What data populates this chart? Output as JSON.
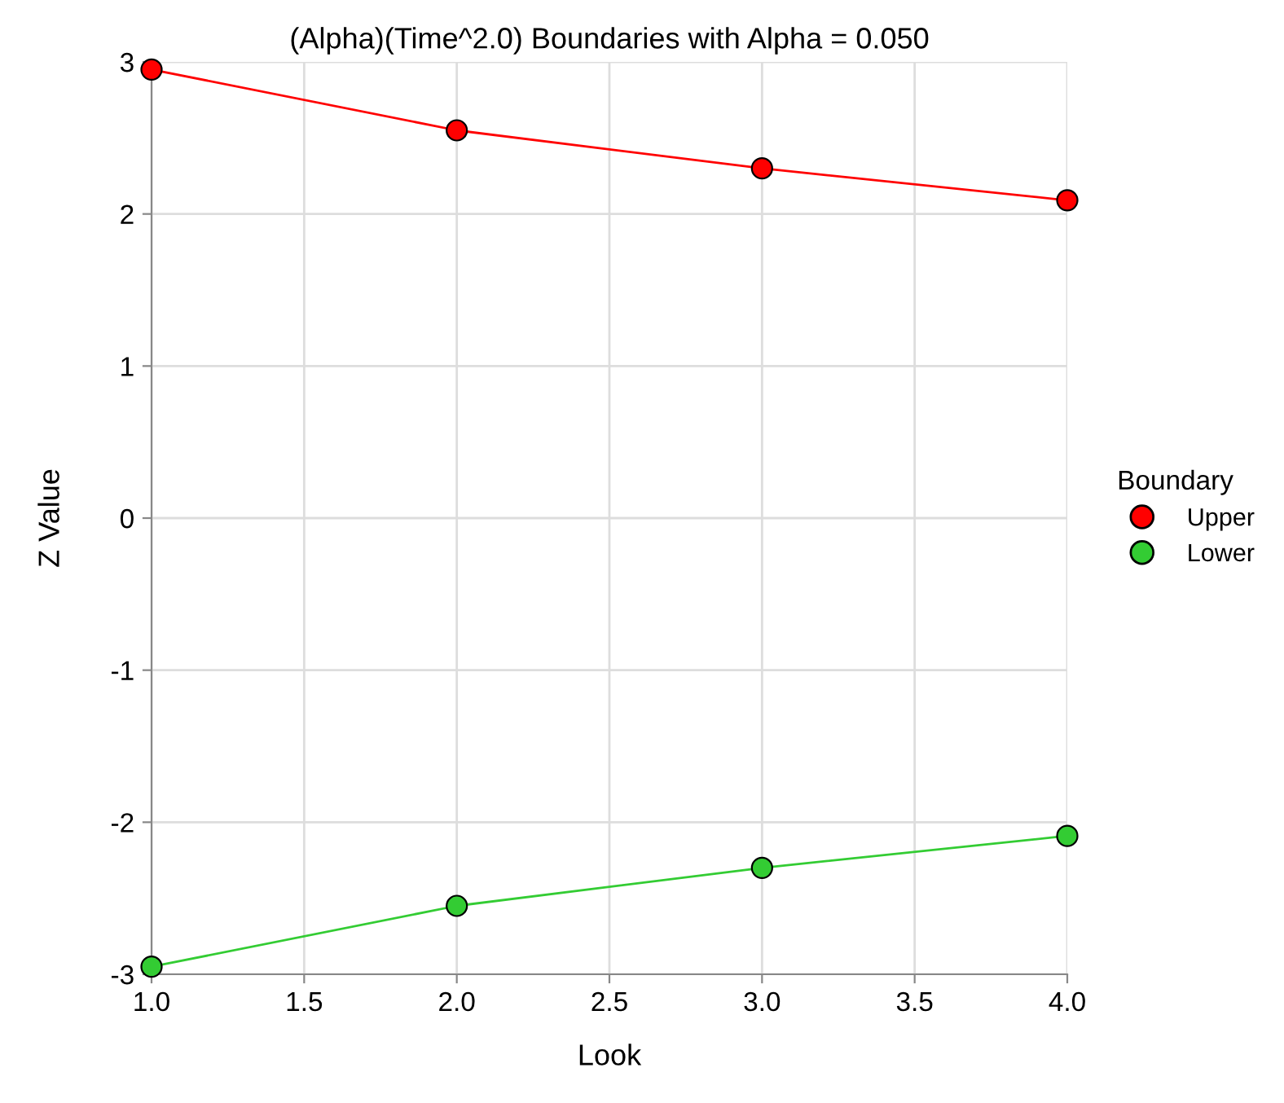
{
  "chart_data": {
    "type": "line",
    "title": "(Alpha)(Time^2.0) Boundaries with Alpha = 0.050",
    "xlabel": "Look",
    "ylabel": "Z Value",
    "legend_title": "Boundary",
    "x": [
      1,
      2,
      3,
      4
    ],
    "series": [
      {
        "name": "Upper",
        "color": "#ff0000",
        "values": [
          2.95,
          2.55,
          2.3,
          2.09
        ]
      },
      {
        "name": "Lower",
        "color": "#33cc33",
        "values": [
          -2.95,
          -2.55,
          -2.3,
          -2.09
        ]
      }
    ],
    "xlim": [
      1,
      4
    ],
    "xticks": [
      {
        "value": 1,
        "label": "1.0"
      },
      {
        "value": 1.5,
        "label": "1.5"
      },
      {
        "value": 2,
        "label": "2.0"
      },
      {
        "value": 2.5,
        "label": "2.5"
      },
      {
        "value": 3,
        "label": "3.0"
      },
      {
        "value": 3.5,
        "label": "3.5"
      },
      {
        "value": 4,
        "label": "4.0"
      }
    ],
    "ylim": [
      -3,
      3
    ],
    "yticks": [
      -3,
      -2,
      -1,
      0,
      1,
      2,
      3
    ],
    "grid": true,
    "legend": "right",
    "marker": "circle",
    "line_style": "solid"
  }
}
